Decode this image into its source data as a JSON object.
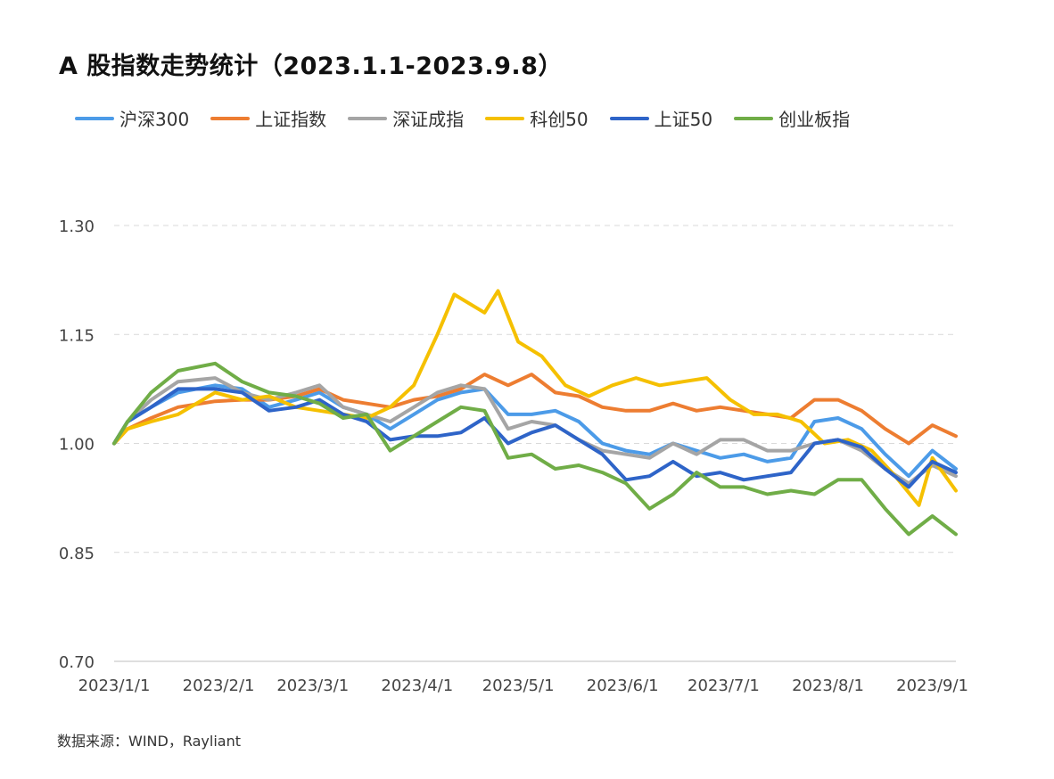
{
  "chart_data": {
    "type": "line",
    "title": "A 股指数走势统计（2023.1.1-2023.9.8）",
    "source": "数据来源：WIND，Rayliant",
    "xlabel": "",
    "ylabel": "",
    "x_range": [
      "2023-01-01",
      "2023-09-08"
    ],
    "ylim": [
      0.7,
      1.3
    ],
    "y_ticks": [
      "1.30",
      "1.15",
      "1.00",
      "0.85",
      "0.70"
    ],
    "x_ticks": [
      {
        "label": "2023/1/1",
        "date": "2023-01-01"
      },
      {
        "label": "2023/2/1",
        "date": "2023-02-01"
      },
      {
        "label": "2023/3/1",
        "date": "2023-03-01"
      },
      {
        "label": "2023/4/1",
        "date": "2023-04-01"
      },
      {
        "label": "2023/5/1",
        "date": "2023-05-01"
      },
      {
        "label": "2023/6/1",
        "date": "2023-06-01"
      },
      {
        "label": "2023/7/1",
        "date": "2023-07-01"
      },
      {
        "label": "2023/8/1",
        "date": "2023-08-01"
      },
      {
        "label": "2023/9/1",
        "date": "2023-09-01"
      }
    ],
    "grid": "horizontal dashed",
    "legend_position": "top",
    "series": [
      {
        "name": "沪深300",
        "color": "#4c9be8",
        "points": [
          [
            "2023-01-01",
            1.0
          ],
          [
            "2023-01-05",
            1.03
          ],
          [
            "2023-01-12",
            1.05
          ],
          [
            "2023-01-20",
            1.07
          ],
          [
            "2023-01-31",
            1.08
          ],
          [
            "2023-02-08",
            1.075
          ],
          [
            "2023-02-16",
            1.05
          ],
          [
            "2023-02-24",
            1.06
          ],
          [
            "2023-03-03",
            1.07
          ],
          [
            "2023-03-10",
            1.05
          ],
          [
            "2023-03-17",
            1.04
          ],
          [
            "2023-03-24",
            1.02
          ],
          [
            "2023-03-31",
            1.04
          ],
          [
            "2023-04-07",
            1.06
          ],
          [
            "2023-04-14",
            1.07
          ],
          [
            "2023-04-21",
            1.075
          ],
          [
            "2023-04-28",
            1.04
          ],
          [
            "2023-05-05",
            1.04
          ],
          [
            "2023-05-12",
            1.045
          ],
          [
            "2023-05-19",
            1.03
          ],
          [
            "2023-05-26",
            1.0
          ],
          [
            "2023-06-02",
            0.99
          ],
          [
            "2023-06-09",
            0.985
          ],
          [
            "2023-06-16",
            1.0
          ],
          [
            "2023-06-23",
            0.99
          ],
          [
            "2023-06-30",
            0.98
          ],
          [
            "2023-07-07",
            0.985
          ],
          [
            "2023-07-14",
            0.975
          ],
          [
            "2023-07-21",
            0.98
          ],
          [
            "2023-07-28",
            1.03
          ],
          [
            "2023-08-04",
            1.035
          ],
          [
            "2023-08-11",
            1.02
          ],
          [
            "2023-08-18",
            0.985
          ],
          [
            "2023-08-25",
            0.955
          ],
          [
            "2023-09-01",
            0.99
          ],
          [
            "2023-09-08",
            0.965
          ]
        ]
      },
      {
        "name": "上证指数",
        "color": "#ed7d31",
        "points": [
          [
            "2023-01-01",
            1.0
          ],
          [
            "2023-01-05",
            1.02
          ],
          [
            "2023-01-12",
            1.035
          ],
          [
            "2023-01-20",
            1.05
          ],
          [
            "2023-01-31",
            1.058
          ],
          [
            "2023-02-08",
            1.06
          ],
          [
            "2023-02-16",
            1.06
          ],
          [
            "2023-02-24",
            1.065
          ],
          [
            "2023-03-03",
            1.075
          ],
          [
            "2023-03-10",
            1.06
          ],
          [
            "2023-03-17",
            1.055
          ],
          [
            "2023-03-24",
            1.05
          ],
          [
            "2023-03-31",
            1.06
          ],
          [
            "2023-04-07",
            1.065
          ],
          [
            "2023-04-14",
            1.075
          ],
          [
            "2023-04-21",
            1.095
          ],
          [
            "2023-04-28",
            1.08
          ],
          [
            "2023-05-05",
            1.095
          ],
          [
            "2023-05-12",
            1.07
          ],
          [
            "2023-05-19",
            1.065
          ],
          [
            "2023-05-26",
            1.05
          ],
          [
            "2023-06-02",
            1.045
          ],
          [
            "2023-06-09",
            1.045
          ],
          [
            "2023-06-16",
            1.055
          ],
          [
            "2023-06-23",
            1.045
          ],
          [
            "2023-06-30",
            1.05
          ],
          [
            "2023-07-07",
            1.045
          ],
          [
            "2023-07-14",
            1.04
          ],
          [
            "2023-07-21",
            1.035
          ],
          [
            "2023-07-28",
            1.06
          ],
          [
            "2023-08-04",
            1.06
          ],
          [
            "2023-08-11",
            1.045
          ],
          [
            "2023-08-18",
            1.02
          ],
          [
            "2023-08-25",
            1.0
          ],
          [
            "2023-09-01",
            1.025
          ],
          [
            "2023-09-08",
            1.01
          ]
        ]
      },
      {
        "name": "深证成指",
        "color": "#a5a5a5",
        "points": [
          [
            "2023-01-01",
            1.0
          ],
          [
            "2023-01-05",
            1.03
          ],
          [
            "2023-01-12",
            1.06
          ],
          [
            "2023-01-20",
            1.085
          ],
          [
            "2023-01-31",
            1.09
          ],
          [
            "2023-02-08",
            1.07
          ],
          [
            "2023-02-16",
            1.06
          ],
          [
            "2023-02-24",
            1.07
          ],
          [
            "2023-03-03",
            1.08
          ],
          [
            "2023-03-10",
            1.05
          ],
          [
            "2023-03-17",
            1.04
          ],
          [
            "2023-03-24",
            1.03
          ],
          [
            "2023-03-31",
            1.05
          ],
          [
            "2023-04-07",
            1.07
          ],
          [
            "2023-04-14",
            1.08
          ],
          [
            "2023-04-21",
            1.075
          ],
          [
            "2023-04-28",
            1.02
          ],
          [
            "2023-05-05",
            1.03
          ],
          [
            "2023-05-12",
            1.025
          ],
          [
            "2023-05-19",
            1.005
          ],
          [
            "2023-05-26",
            0.99
          ],
          [
            "2023-06-02",
            0.985
          ],
          [
            "2023-06-09",
            0.98
          ],
          [
            "2023-06-16",
            1.0
          ],
          [
            "2023-06-23",
            0.985
          ],
          [
            "2023-06-30",
            1.005
          ],
          [
            "2023-07-07",
            1.005
          ],
          [
            "2023-07-14",
            0.99
          ],
          [
            "2023-07-21",
            0.99
          ],
          [
            "2023-07-28",
            1.0
          ],
          [
            "2023-08-04",
            1.005
          ],
          [
            "2023-08-11",
            0.99
          ],
          [
            "2023-08-18",
            0.965
          ],
          [
            "2023-08-25",
            0.945
          ],
          [
            "2023-09-01",
            0.97
          ],
          [
            "2023-09-08",
            0.955
          ]
        ]
      },
      {
        "name": "科创50",
        "color": "#f5c000",
        "points": [
          [
            "2023-01-01",
            1.0
          ],
          [
            "2023-01-05",
            1.02
          ],
          [
            "2023-01-12",
            1.03
          ],
          [
            "2023-01-20",
            1.04
          ],
          [
            "2023-01-31",
            1.07
          ],
          [
            "2023-02-08",
            1.06
          ],
          [
            "2023-02-16",
            1.065
          ],
          [
            "2023-02-24",
            1.05
          ],
          [
            "2023-03-03",
            1.045
          ],
          [
            "2023-03-10",
            1.04
          ],
          [
            "2023-03-17",
            1.035
          ],
          [
            "2023-03-24",
            1.05
          ],
          [
            "2023-03-31",
            1.08
          ],
          [
            "2023-04-07",
            1.15
          ],
          [
            "2023-04-12",
            1.205
          ],
          [
            "2023-04-21",
            1.18
          ],
          [
            "2023-04-25",
            1.21
          ],
          [
            "2023-05-01",
            1.14
          ],
          [
            "2023-05-08",
            1.12
          ],
          [
            "2023-05-15",
            1.08
          ],
          [
            "2023-05-22",
            1.065
          ],
          [
            "2023-05-29",
            1.08
          ],
          [
            "2023-06-05",
            1.09
          ],
          [
            "2023-06-12",
            1.08
          ],
          [
            "2023-06-19",
            1.085
          ],
          [
            "2023-06-26",
            1.09
          ],
          [
            "2023-07-03",
            1.06
          ],
          [
            "2023-07-10",
            1.04
          ],
          [
            "2023-07-17",
            1.04
          ],
          [
            "2023-07-24",
            1.03
          ],
          [
            "2023-07-31",
            1.0
          ],
          [
            "2023-08-07",
            1.005
          ],
          [
            "2023-08-14",
            0.99
          ],
          [
            "2023-08-21",
            0.955
          ],
          [
            "2023-08-28",
            0.915
          ],
          [
            "2023-09-01",
            0.98
          ],
          [
            "2023-09-08",
            0.935
          ]
        ]
      },
      {
        "name": "上证50",
        "color": "#2e64c8",
        "points": [
          [
            "2023-01-01",
            1.0
          ],
          [
            "2023-01-05",
            1.03
          ],
          [
            "2023-01-12",
            1.05
          ],
          [
            "2023-01-20",
            1.075
          ],
          [
            "2023-01-31",
            1.075
          ],
          [
            "2023-02-08",
            1.07
          ],
          [
            "2023-02-16",
            1.045
          ],
          [
            "2023-02-24",
            1.05
          ],
          [
            "2023-03-03",
            1.06
          ],
          [
            "2023-03-10",
            1.04
          ],
          [
            "2023-03-17",
            1.03
          ],
          [
            "2023-03-24",
            1.005
          ],
          [
            "2023-03-31",
            1.01
          ],
          [
            "2023-04-07",
            1.01
          ],
          [
            "2023-04-14",
            1.015
          ],
          [
            "2023-04-21",
            1.035
          ],
          [
            "2023-04-28",
            1.0
          ],
          [
            "2023-05-05",
            1.015
          ],
          [
            "2023-05-12",
            1.025
          ],
          [
            "2023-05-19",
            1.005
          ],
          [
            "2023-05-26",
            0.985
          ],
          [
            "2023-06-02",
            0.95
          ],
          [
            "2023-06-09",
            0.955
          ],
          [
            "2023-06-16",
            0.975
          ],
          [
            "2023-06-23",
            0.955
          ],
          [
            "2023-06-30",
            0.96
          ],
          [
            "2023-07-07",
            0.95
          ],
          [
            "2023-07-14",
            0.955
          ],
          [
            "2023-07-21",
            0.96
          ],
          [
            "2023-07-28",
            1.0
          ],
          [
            "2023-08-04",
            1.005
          ],
          [
            "2023-08-11",
            0.995
          ],
          [
            "2023-08-18",
            0.965
          ],
          [
            "2023-08-25",
            0.94
          ],
          [
            "2023-09-01",
            0.975
          ],
          [
            "2023-09-08",
            0.96
          ]
        ]
      },
      {
        "name": "创业板指",
        "color": "#70ad47",
        "points": [
          [
            "2023-01-01",
            1.0
          ],
          [
            "2023-01-05",
            1.03
          ],
          [
            "2023-01-12",
            1.07
          ],
          [
            "2023-01-20",
            1.1
          ],
          [
            "2023-01-31",
            1.11
          ],
          [
            "2023-02-08",
            1.085
          ],
          [
            "2023-02-16",
            1.07
          ],
          [
            "2023-02-24",
            1.065
          ],
          [
            "2023-03-03",
            1.055
          ],
          [
            "2023-03-10",
            1.035
          ],
          [
            "2023-03-17",
            1.04
          ],
          [
            "2023-03-24",
            0.99
          ],
          [
            "2023-03-31",
            1.01
          ],
          [
            "2023-04-07",
            1.03
          ],
          [
            "2023-04-14",
            1.05
          ],
          [
            "2023-04-21",
            1.045
          ],
          [
            "2023-04-28",
            0.98
          ],
          [
            "2023-05-05",
            0.985
          ],
          [
            "2023-05-12",
            0.965
          ],
          [
            "2023-05-19",
            0.97
          ],
          [
            "2023-05-26",
            0.96
          ],
          [
            "2023-06-02",
            0.945
          ],
          [
            "2023-06-09",
            0.91
          ],
          [
            "2023-06-16",
            0.93
          ],
          [
            "2023-06-23",
            0.96
          ],
          [
            "2023-06-30",
            0.94
          ],
          [
            "2023-07-07",
            0.94
          ],
          [
            "2023-07-14",
            0.93
          ],
          [
            "2023-07-21",
            0.935
          ],
          [
            "2023-07-28",
            0.93
          ],
          [
            "2023-08-04",
            0.95
          ],
          [
            "2023-08-11",
            0.95
          ],
          [
            "2023-08-18",
            0.91
          ],
          [
            "2023-08-25",
            0.875
          ],
          [
            "2023-09-01",
            0.9
          ],
          [
            "2023-09-08",
            0.875
          ]
        ]
      }
    ]
  }
}
